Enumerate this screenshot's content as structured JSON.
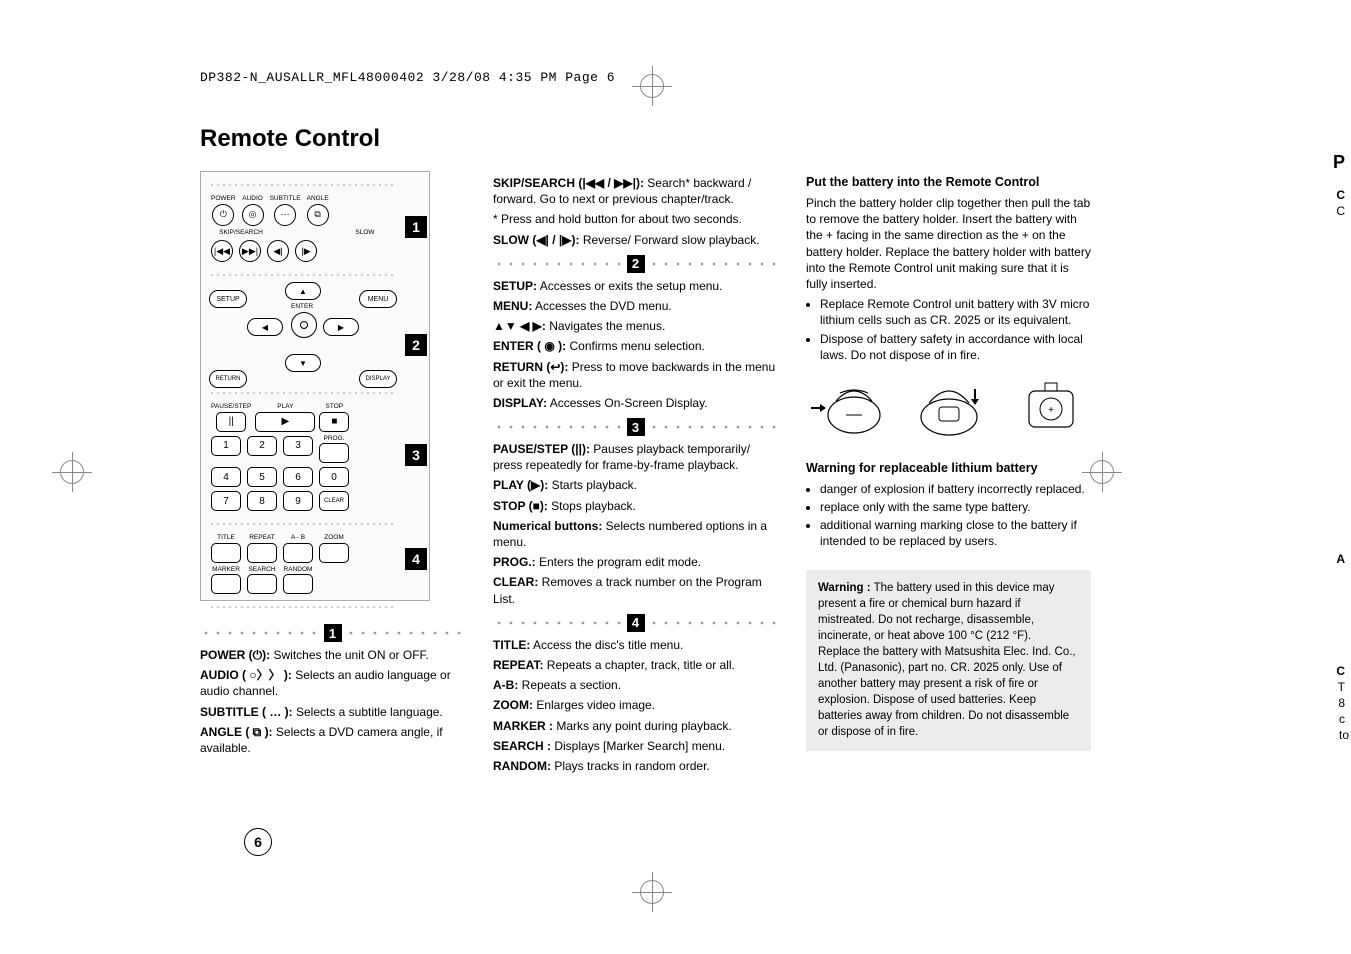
{
  "header": "DP382-N_AUSALLR_MFL48000402  3/28/08  4:35 PM  Page 6",
  "title": "Remote Control",
  "page_number": "6",
  "remote": {
    "row1_labels": [
      "POWER",
      "AUDIO",
      "SUBTITLE",
      "ANGLE"
    ],
    "row2_label_left": "SKIP/SEARCH",
    "row2_label_right": "SLOW",
    "section2": {
      "setup": "SETUP",
      "menu": "MENU",
      "enter": "ENTER",
      "return": "RETURN",
      "display": "DISPLAY"
    },
    "section3": {
      "pausestep": "PAUSE/STEP",
      "play": "PLAY",
      "stop": "STOP",
      "prog": "PROG.",
      "clear": "CLEAR"
    },
    "section4": {
      "title": "TITLE",
      "repeat": "REPEAT",
      "ab": "A - B",
      "zoom": "ZOOM",
      "marker": "MARKER",
      "search": "SEARCH",
      "random": "RANDOM"
    },
    "badges": [
      "1",
      "2",
      "3",
      "4"
    ]
  },
  "col1_entries": [
    {
      "k": "POWER (⏻):",
      "v": " Switches the unit ON or OFF."
    },
    {
      "k": "AUDIO ( ○〉〉 ):",
      "v": " Selects an audio language or audio channel."
    },
    {
      "k": "SUBTITLE ( … ):",
      "v": " Selects a subtitle language."
    },
    {
      "k": "ANGLE ( ⧉ ):",
      "v": " Selects a DVD camera angle, if available."
    }
  ],
  "col2_top": [
    {
      "k": "SKIP/SEARCH (|◀◀ / ▶▶|):",
      "v": " Search* backward / forward. Go to next or previous chapter/track."
    },
    {
      "k": "",
      "v": "* Press and hold button for about two seconds."
    },
    {
      "k": "SLOW (◀| / |▶):",
      "v": " Reverse/ Forward slow playback."
    }
  ],
  "col2_sec2": [
    {
      "k": "SETUP:",
      "v": " Accesses or exits the setup menu."
    },
    {
      "k": "MENU:",
      "v": " Accesses the DVD menu."
    },
    {
      "k": "▲▼ ◀ ▶:",
      "v": " Navigates the menus."
    },
    {
      "k": "ENTER ( ◉ ):",
      "v": " Confirms menu selection."
    },
    {
      "k": "RETURN (↩):",
      "v": " Press to move backwards in the menu or exit the menu."
    },
    {
      "k": "DISPLAY:",
      "v": " Accesses On-Screen Display."
    }
  ],
  "col2_sec3": [
    {
      "k": "PAUSE/STEP (||):",
      "v": " Pauses playback temporarily/ press repeatedly for frame-by-frame playback."
    },
    {
      "k": "PLAY (▶):",
      "v": " Starts playback."
    },
    {
      "k": "STOP (■):",
      "v": " Stops playback."
    },
    {
      "k": "Numerical buttons:",
      "v": " Selects numbered options in a menu."
    },
    {
      "k": "PROG.:",
      "v": " Enters the program edit mode."
    },
    {
      "k": "CLEAR:",
      "v": " Removes a track number on the Program List."
    }
  ],
  "col2_sec4": [
    {
      "k": "TITLE:",
      "v": " Access the disc's title menu."
    },
    {
      "k": "REPEAT:",
      "v": " Repeats a chapter, track, title or all."
    },
    {
      "k": "A-B:",
      "v": " Repeats a section."
    },
    {
      "k": "ZOOM:",
      "v": " Enlarges video image."
    },
    {
      "k": "MARKER :",
      "v": " Marks any point during playback."
    },
    {
      "k": "SEARCH :",
      "v": " Displays [Marker Search] menu."
    },
    {
      "k": "RANDOM:",
      "v": " Plays tracks in random order."
    }
  ],
  "col3": {
    "h1": "Put the battery into the Remote Control",
    "p1": "Pinch the battery holder clip together then pull the tab to remove the battery holder. Insert the battery with the + facing in the same direction as the + on the battery holder. Replace the battery holder with battery into the Remote Control unit making sure that it is fully inserted.",
    "bullets1": [
      "Replace Remote Control unit battery with 3V micro lithium cells such as CR. 2025 or its equivalent.",
      "Dispose of battery safety in accordance with local laws. Do not dispose of in fire."
    ],
    "h2": "Warning for replaceable lithium battery",
    "bullets2": [
      "danger of explosion if battery incorrectly replaced.",
      "replace only with the same type battery.",
      "additional warning marking close to the battery if intended to be replaced by users."
    ],
    "warn_label": "Warning :",
    "warn": " The battery used in this device may present a fire or chemical burn hazard if mistreated. Do not recharge, disassemble, incinerate, or heat above 100 °C (212 °F).\nReplace the battery with Matsushita Elec. Ind. Co., Ltd. (Panasonic), part no. CR. 2025 only. Use of another battery may present a risk of fire or explosion. Dispose of used batteries. Keep batteries away from children. Do not disassemble or dispose of in fire."
  },
  "edge": {
    "r1": "P",
    "r2": "C",
    "r3": "C",
    "r4": "A",
    "r5": "C",
    "r6": "T",
    "r7": "8",
    "r8": "c",
    "r9": "to"
  }
}
